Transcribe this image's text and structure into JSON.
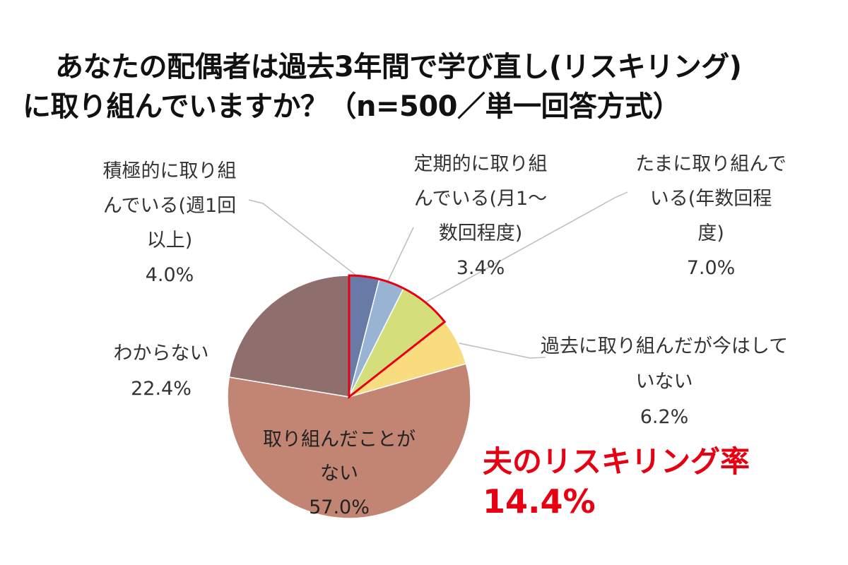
{
  "title": {
    "line1": "あなたの配偶者は過去3年間で学び直し(リスキリング)",
    "line2": "に取り組んでいますか？（n=500／単一回答方式）"
  },
  "chart_data": {
    "type": "pie",
    "title": "あなたの配偶者は過去3年間で学び直し(リスキリング)に取り組んでいますか？（n=500／単一回答方式）",
    "start_angle_deg": 0,
    "direction": "clockwise",
    "highlighted_group": "夫のリスキリング率",
    "slices": [
      {
        "label_lines": [
          "積極的に取り組",
          "んでいる(週1回",
          "以上)"
        ],
        "value": 4.0,
        "value_label": "4.0%",
        "color": "#6a7aa6",
        "highlight": true
      },
      {
        "label_lines": [
          "定期的に取り組",
          "んでいる(月1～",
          "数回程度)"
        ],
        "value": 3.4,
        "value_label": "3.4%",
        "color": "#99b3d4",
        "highlight": true
      },
      {
        "label_lines": [
          "たまに取り組んで",
          "いる(年数回程",
          "度)"
        ],
        "value": 7.0,
        "value_label": "7.0%",
        "color": "#d4df7c",
        "highlight": true
      },
      {
        "label_lines": [
          "過去に取り組んだが今はして",
          "いない"
        ],
        "value": 6.2,
        "value_label": "6.2%",
        "color": "#f9dc7f",
        "highlight": false
      },
      {
        "label_lines": [
          "取り組んだことが",
          "ない"
        ],
        "value": 57.0,
        "value_label": "57.0%",
        "color": "#c28574",
        "highlight": false
      },
      {
        "label_lines": [
          "わからない"
        ],
        "value": 22.4,
        "value_label": "22.4%",
        "color": "#8f6f6d",
        "highlight": false
      }
    ]
  },
  "callout": {
    "label": "夫のリスキリング率",
    "value": "14.4%",
    "color": "#e60012"
  }
}
